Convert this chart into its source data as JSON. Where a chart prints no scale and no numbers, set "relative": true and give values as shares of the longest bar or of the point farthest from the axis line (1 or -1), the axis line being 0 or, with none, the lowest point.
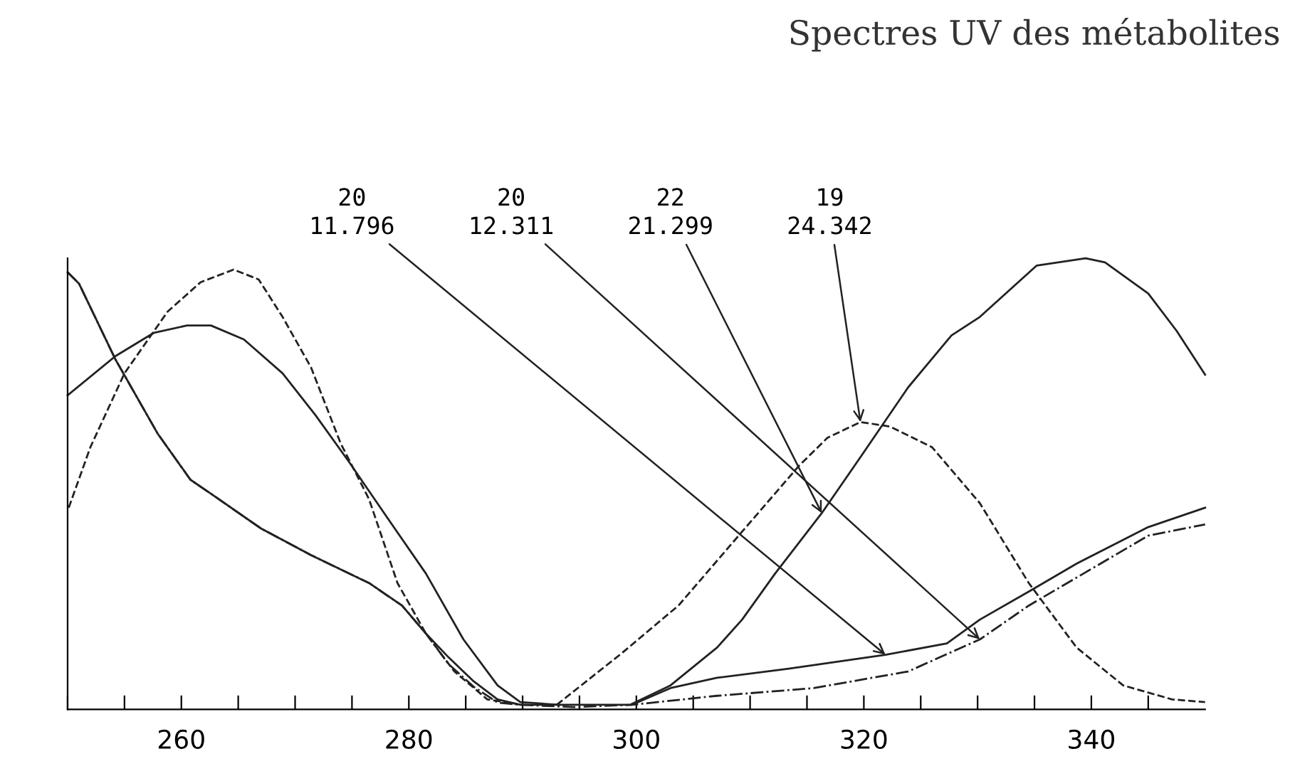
{
  "chart_data": {
    "type": "line",
    "relative": true,
    "title": "Spectres UV des métabolites",
    "xlim": [
      250,
      350
    ],
    "xticks": [
      {
        "value": 250,
        "label": null
      },
      {
        "value": 255,
        "label": null
      },
      260,
      {
        "value": 265,
        "label": null
      },
      {
        "value": 270,
        "label": null
      },
      {
        "value": 275,
        "label": null
      },
      280,
      {
        "value": 285,
        "label": null
      },
      {
        "value": 290,
        "label": null
      },
      {
        "value": 295,
        "label": null
      },
      300,
      {
        "value": 305,
        "label": null
      },
      {
        "value": 310,
        "label": null
      },
      {
        "value": 315,
        "label": null
      },
      320,
      {
        "value": 325,
        "label": null
      },
      {
        "value": 330,
        "label": null
      },
      {
        "value": 335,
        "label": null
      },
      340,
      {
        "value": 345,
        "label": null
      }
    ],
    "grid": false,
    "legend": false,
    "series": [
      {
        "color": "#222222",
        "line_style": "solid",
        "x": [
          250,
          251,
          254.2,
          257.9,
          260.8,
          262.6,
          267,
          271.4,
          276.5,
          279.4,
          281.5,
          283.5,
          285.7,
          287.8,
          289.8,
          294.5,
          299.6,
          303,
          307.1,
          313.4,
          321.9,
          327.3,
          330.2,
          334.5,
          338.7,
          345,
          350
        ],
        "values": [
          0.969,
          0.944,
          0.776,
          0.612,
          0.509,
          0.478,
          0.401,
          0.342,
          0.28,
          0.23,
          0.168,
          0.115,
          0.062,
          0.022,
          0.01,
          0.01,
          0.01,
          0.047,
          0.07,
          0.09,
          0.121,
          0.146,
          0.199,
          0.261,
          0.323,
          0.404,
          0.447
        ]
      },
      {
        "color": "#222222",
        "line_style": "dashdot",
        "x": [
          250,
          251,
          254.2,
          257.9,
          260.8,
          262.6,
          267,
          271.4,
          276.5,
          279.4,
          281.5,
          283.5,
          285.7,
          287.8,
          289.8,
          294.5,
          299.6,
          307.1,
          315.6,
          323.9,
          330.2,
          334.5,
          340.8,
          345,
          350
        ],
        "values": [
          0.969,
          0.944,
          0.776,
          0.612,
          0.509,
          0.478,
          0.401,
          0.342,
          0.28,
          0.23,
          0.168,
          0.1,
          0.05,
          0.015,
          0.01,
          0.005,
          0.01,
          0.03,
          0.047,
          0.084,
          0.155,
          0.23,
          0.323,
          0.385,
          0.41
        ]
      },
      {
        "color": "#222222",
        "line_style": "solid",
        "x": [
          250,
          254.2,
          257.6,
          260.5,
          262.6,
          265.5,
          268.9,
          271.8,
          274.7,
          278.1,
          281.5,
          284.8,
          287.8,
          289.8,
          293.2
        ],
        "values": [
          0.696,
          0.783,
          0.835,
          0.851,
          0.851,
          0.82,
          0.745,
          0.652,
          0.55,
          0.425,
          0.301,
          0.155,
          0.053,
          0.016,
          0.01
        ]
      },
      {
        "color": "#222222",
        "line_style": "dashed",
        "x": [
          250.1,
          252,
          255,
          258.8,
          261.7,
          264.6,
          266.8,
          268.9,
          271.4,
          274,
          276.5,
          279,
          281.5,
          284,
          286.9,
          289.5
        ],
        "values": [
          0.447,
          0.581,
          0.745,
          0.882,
          0.947,
          0.975,
          0.953,
          0.87,
          0.758,
          0.59,
          0.466,
          0.28,
          0.168,
          0.084,
          0.022,
          0.012
        ]
      },
      {
        "color": "#222222",
        "line_style": "dashed",
        "x": [
          293,
          298.7,
          303.7,
          309.3,
          314.3,
          316.8,
          319.7,
          322.3,
          326,
          330.2,
          334.5,
          338.7,
          342.8,
          347.1,
          350
        ],
        "values": [
          0.01,
          0.124,
          0.23,
          0.394,
          0.54,
          0.602,
          0.637,
          0.627,
          0.581,
          0.457,
          0.28,
          0.137,
          0.053,
          0.022,
          0.016
        ]
      },
      {
        "color": "#222222",
        "line_style": "solid",
        "x": [
          299.6,
          303,
          307.1,
          309.3,
          312.2,
          316.3,
          319.7,
          323.9,
          327.7,
          330.2,
          335.2,
          339.5,
          341.2,
          345,
          347.5,
          350
        ],
        "values": [
          0.012,
          0.053,
          0.137,
          0.199,
          0.301,
          0.435,
          0.559,
          0.714,
          0.829,
          0.87,
          0.984,
          1.0,
          0.991,
          0.922,
          0.839,
          0.742
        ]
      }
    ],
    "annotations": [
      {
        "text": "20\n11.796",
        "x": 321.9,
        "y": 0.121
      },
      {
        "text": "20\n12.311",
        "x": 330.2,
        "y": 0.155
      },
      {
        "text": "22\n21.299",
        "x": 316.3,
        "y": 0.435
      },
      {
        "text": "19\n24.342",
        "x": 319.7,
        "y": 0.637
      }
    ]
  }
}
